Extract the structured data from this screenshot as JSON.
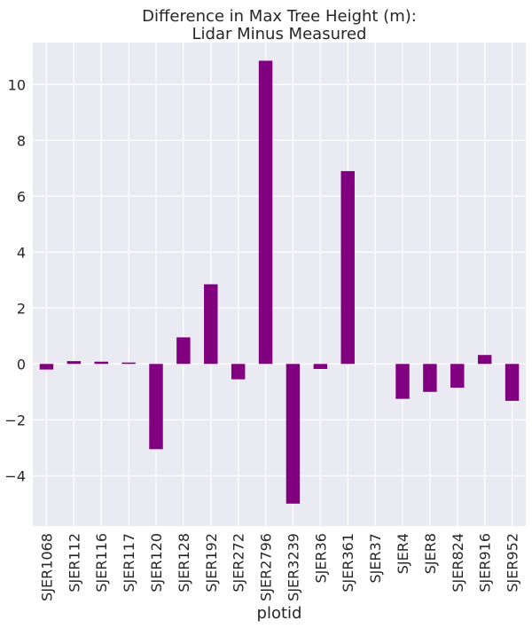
{
  "chart_data": {
    "type": "bar",
    "title": [
      "Difference in Max Tree Height (m):",
      "Lidar Minus Measured"
    ],
    "xlabel": "plotid",
    "ylabel": "",
    "categories": [
      "SJER1068",
      "SJER112",
      "SJER116",
      "SJER117",
      "SJER120",
      "SJER128",
      "SJER192",
      "SJER272",
      "SJER2796",
      "SJER3239",
      "SJER36",
      "SJER361",
      "SJER37",
      "SJER4",
      "SJER8",
      "SJER824",
      "SJER916",
      "SJER952"
    ],
    "values": [
      -0.2,
      0.1,
      0.08,
      0.05,
      -3.05,
      0.95,
      2.85,
      -0.55,
      10.85,
      -5.0,
      -0.18,
      6.9,
      0.0,
      -1.25,
      -1.0,
      -0.85,
      0.32,
      -1.32
    ],
    "ylim": [
      -5.8,
      11.5
    ],
    "yticks": [
      -4,
      -2,
      0,
      2,
      4,
      6,
      8,
      10
    ],
    "ytick_labels": [
      "−4",
      "−2",
      "0",
      "2",
      "4",
      "6",
      "8",
      "10"
    ],
    "grid": true,
    "bar_color": "#800080",
    "background_color": "#EAEAF2",
    "grid_color": "#FFFFFF"
  }
}
